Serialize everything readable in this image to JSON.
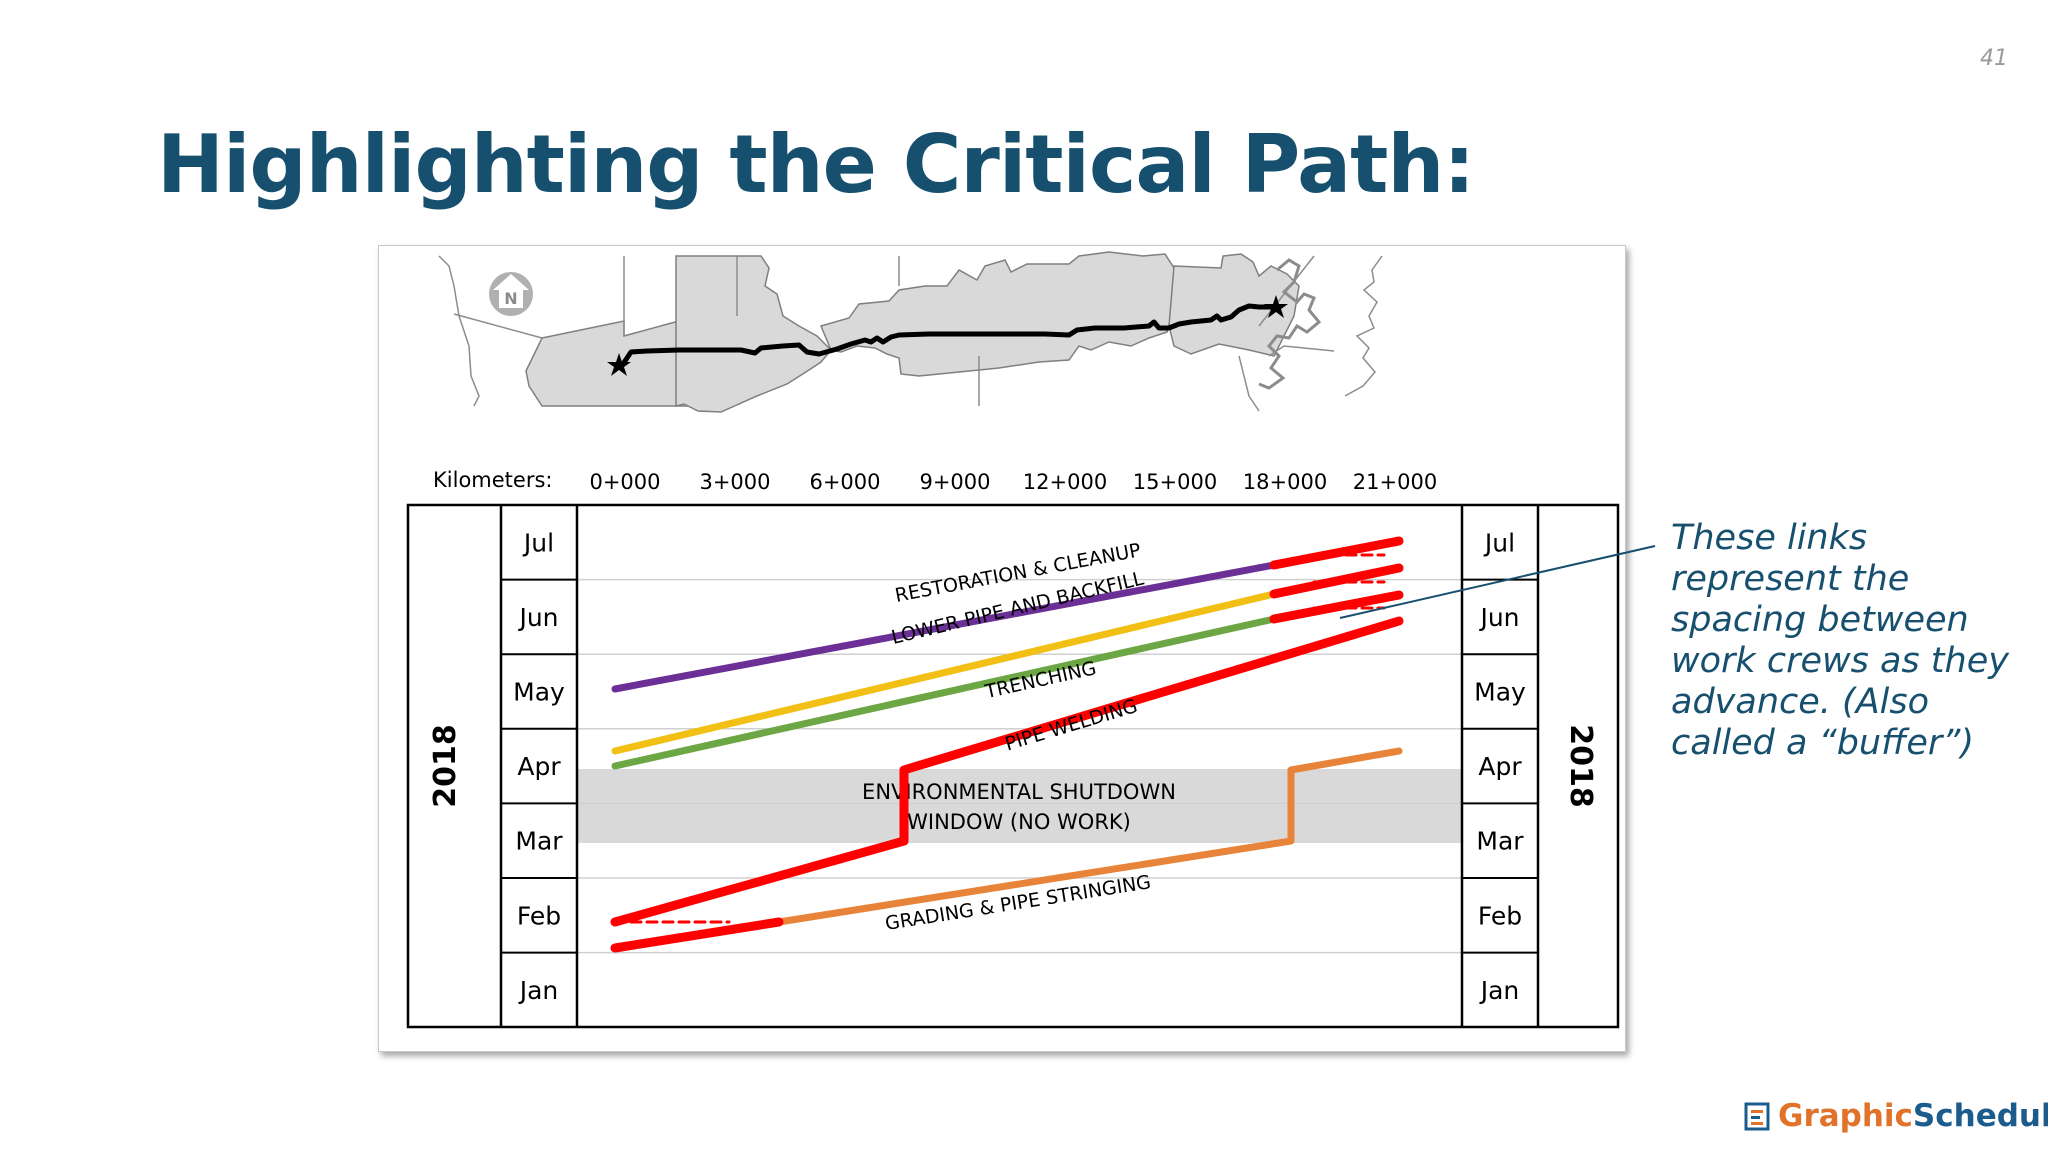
{
  "page_number": "41",
  "title": "Highlighting the Critical Path:",
  "map": {
    "north_label": "N",
    "km_label": "Kilometers:",
    "km_ticks": [
      "0+000",
      "3+000",
      "6+000",
      "9+000",
      "12+000",
      "15+000",
      "18+000",
      "21+000"
    ]
  },
  "schedule": {
    "year_left": "2018",
    "year_right": "2018",
    "months": [
      "Jul",
      "Jun",
      "May",
      "Apr",
      "Mar",
      "Feb",
      "Jan"
    ],
    "shutdown_line1": "ENVIRONMENTAL SHUTDOWN",
    "shutdown_line2": "WINDOW (NO WORK)",
    "activities": [
      {
        "label": "RESTORATION & CLEANUP",
        "color": "#6b2f96"
      },
      {
        "label": "LOWER PIPE AND BACKFILL",
        "color": "#f2c014"
      },
      {
        "label": "TRENCHING",
        "color": "#6da644"
      },
      {
        "label": "PIPE WELDING",
        "color": "#ff0000"
      },
      {
        "label": "GRADING & PIPE STRINGING",
        "color": "#e8843a"
      }
    ],
    "critical_color": "#ff0000"
  },
  "annotation": "These links represent the spacing between work crews as they advance. (Also called a “buffer”)",
  "annotation_color": "#17506f",
  "logo": {
    "word1": "Graphic",
    "word2": "Schedule"
  },
  "colors": {
    "title": "#17506f",
    "shutdown_fill": "#d9d9d9"
  }
}
